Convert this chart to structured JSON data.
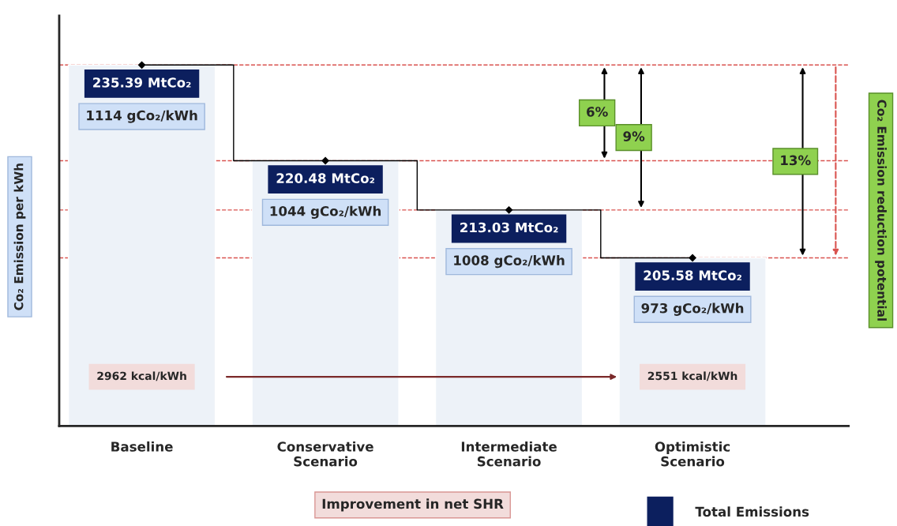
{
  "chart_data": {
    "type": "bar",
    "categories": [
      "Baseline",
      "Conservative\nScenario",
      "Intermediate\nScenario",
      "Optimistic\nScenario"
    ],
    "ylabel": "Co₂ Emission per kWh",
    "y2label": "Co₂ Emission reduction potential",
    "ylim": [
      850,
      1150
    ],
    "series": [
      {
        "color": "#edf2f8",
        "values": [
          1114,
          1044,
          1008,
          973
        ],
        "value_labels": [
          "1114 gCo₂/kWh",
          "1044 gCo₂/kWh",
          "1008 gCo₂/kWh",
          "973 gCo₂/kWh"
        ]
      },
      {
        "type": "step",
        "color": "#000000",
        "marker": "diamond",
        "values": [
          1114,
          1044,
          1008,
          973
        ]
      }
    ],
    "ref_lines": [
      {
        "axis": "y",
        "value": 1114,
        "color": "#d9534f",
        "line_style": "dashed"
      },
      {
        "axis": "y",
        "value": 1044,
        "color": "#d9534f",
        "line_style": "dashed"
      },
      {
        "axis": "y",
        "value": 1008,
        "color": "#d9534f",
        "line_style": "dashed"
      },
      {
        "axis": "y",
        "value": 973,
        "color": "#d9534f",
        "line_style": "dashed"
      }
    ],
    "annotations": [
      "235.39 MtCo₂",
      "220.48 MtCo₂",
      "213.03 MtCo₂",
      "205.58 MtCo₂",
      "6%",
      "9%",
      "13%",
      "2962 kcal/kWh",
      "2551 kcal/kWh",
      "Improvement in net SHR",
      "Total Emissions"
    ]
  }
}
